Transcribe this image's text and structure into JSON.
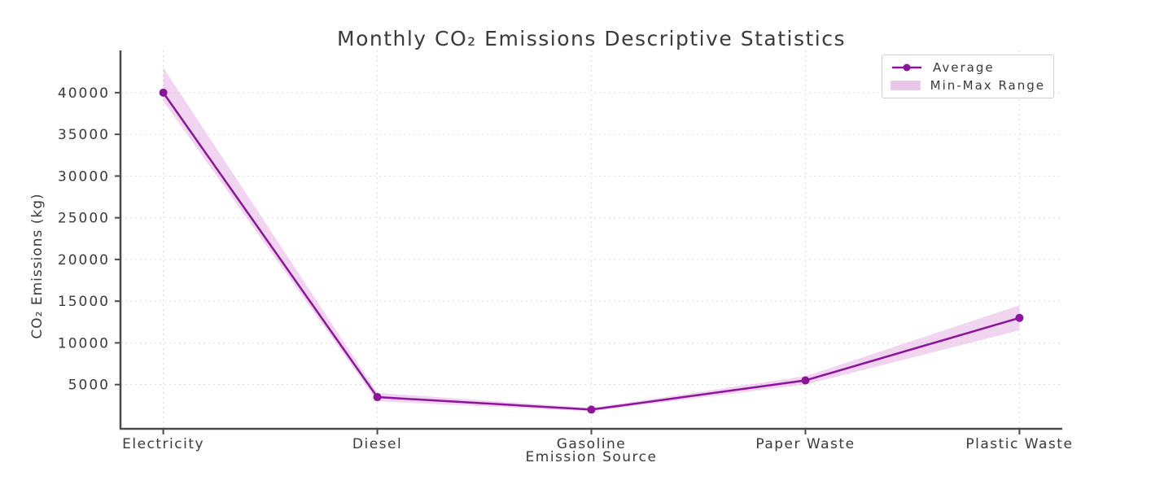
{
  "figure": {
    "background": "#ffffff",
    "text_color": "#3a3a3a",
    "spine_color": "#4a4a4a",
    "grid_color": "#dcdcdc"
  },
  "chart_data": {
    "type": "line",
    "title": "Monthly CO₂ Emissions Descriptive Statistics",
    "xlabel": "Emission Source",
    "ylabel": "CO₂ Emissions (kg)",
    "categories": [
      "Electricity",
      "Diesel",
      "Gasoline",
      "Paper Waste",
      "Plastic Waste"
    ],
    "series": [
      {
        "name": "Average",
        "style": "line-with-circle-markers",
        "color": "#8b149b",
        "values": [
          40000,
          3500,
          2000,
          5500,
          13000
        ]
      },
      {
        "name": "Min-Max Range",
        "style": "band",
        "color": "#DDA0DD",
        "opacity": 0.45,
        "min": [
          39000,
          3000,
          1800,
          5000,
          11500
        ],
        "max": [
          43000,
          4000,
          2200,
          6000,
          14500
        ]
      }
    ],
    "yticks": [
      5000,
      10000,
      15000,
      20000,
      25000,
      30000,
      35000,
      40000
    ],
    "ylim": [
      -300,
      45060
    ],
    "xlim": [
      -0.2,
      4.2
    ],
    "grid": true,
    "grid_style": "dashed",
    "legend_position": "upper right"
  }
}
